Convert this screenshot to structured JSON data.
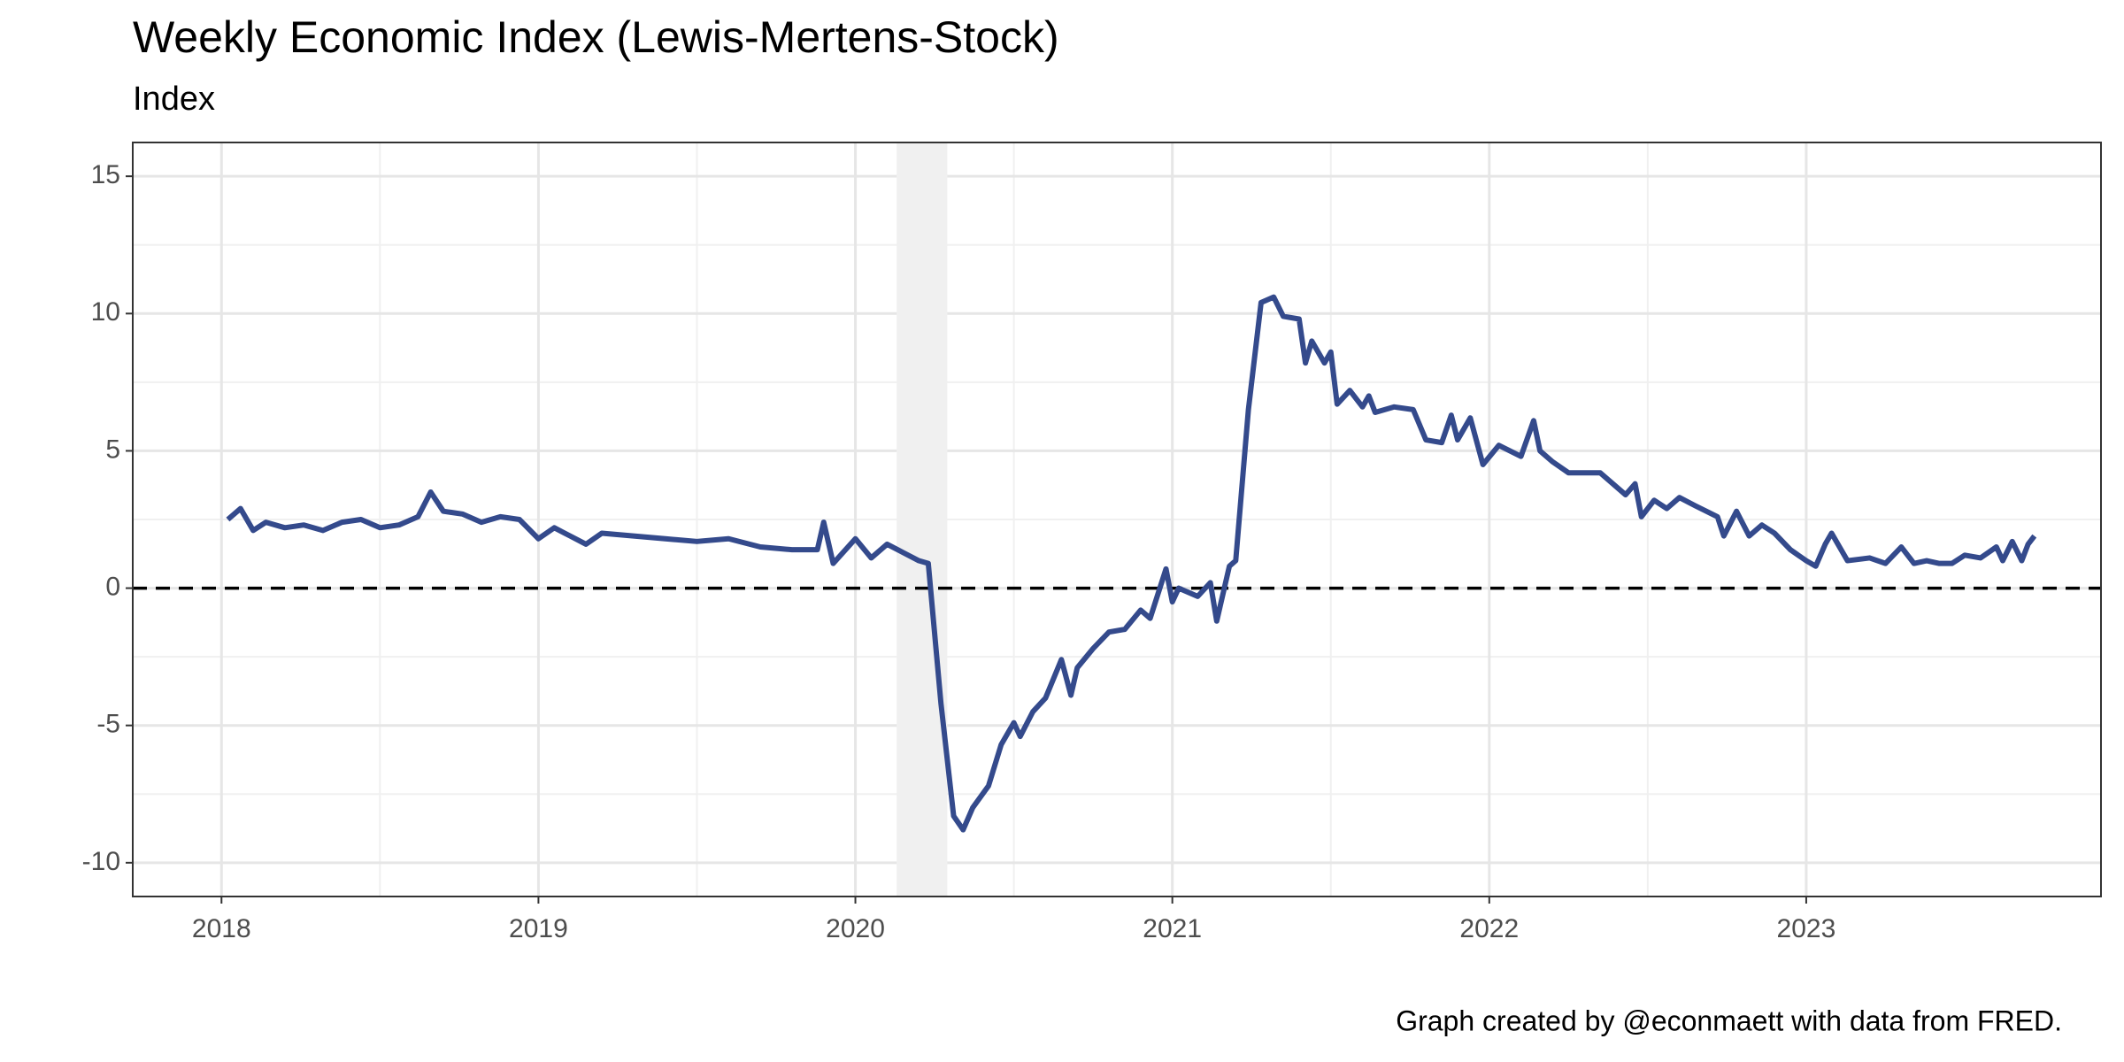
{
  "chart_data": {
    "type": "line",
    "title": "Weekly Economic Index (Lewis-Mertens-Stock)",
    "subtitle": "Index",
    "caption": "Graph created by @econmaett with data from FRED.",
    "x": [
      2018.02,
      2018.06,
      2018.1,
      2018.14,
      2018.2,
      2018.26,
      2018.32,
      2018.38,
      2018.44,
      2018.5,
      2018.56,
      2018.62,
      2018.66,
      2018.7,
      2018.76,
      2018.82,
      2018.88,
      2018.94,
      2019.0,
      2019.05,
      2019.1,
      2019.15,
      2019.2,
      2019.3,
      2019.4,
      2019.5,
      2019.6,
      2019.7,
      2019.8,
      2019.88,
      2019.9,
      2019.93,
      2020.0,
      2020.05,
      2020.1,
      2020.15,
      2020.2,
      2020.23,
      2020.27,
      2020.31,
      2020.34,
      2020.37,
      2020.42,
      2020.46,
      2020.5,
      2020.52,
      2020.56,
      2020.6,
      2020.65,
      2020.68,
      2020.7,
      2020.75,
      2020.8,
      2020.85,
      2020.9,
      2020.93,
      2020.98,
      2021.0,
      2021.02,
      2021.08,
      2021.12,
      2021.14,
      2021.18,
      2021.2,
      2021.24,
      2021.28,
      2021.32,
      2021.35,
      2021.4,
      2021.42,
      2021.44,
      2021.48,
      2021.5,
      2021.52,
      2021.56,
      2021.6,
      2021.62,
      2021.64,
      2021.7,
      2021.76,
      2021.8,
      2021.85,
      2021.88,
      2021.9,
      2021.94,
      2021.98,
      2022.03,
      2022.1,
      2022.14,
      2022.16,
      2022.2,
      2022.25,
      2022.3,
      2022.35,
      2022.43,
      2022.46,
      2022.48,
      2022.52,
      2022.56,
      2022.6,
      2022.65,
      2022.72,
      2022.74,
      2022.78,
      2022.82,
      2022.86,
      2022.9,
      2022.95,
      2023.0,
      2023.03,
      2023.06,
      2023.08,
      2023.13,
      2023.2,
      2023.25,
      2023.3,
      2023.34,
      2023.38,
      2023.42,
      2023.46,
      2023.5,
      2023.55,
      2023.6,
      2023.62,
      2023.65,
      2023.68,
      2023.7,
      2023.72
    ],
    "series": [
      {
        "name": "Weekly Economic Index",
        "color": "#344a8c",
        "values": [
          2.5,
          2.9,
          2.1,
          2.4,
          2.2,
          2.3,
          2.1,
          2.4,
          2.5,
          2.2,
          2.3,
          2.6,
          3.5,
          2.8,
          2.7,
          2.4,
          2.6,
          2.5,
          1.8,
          2.2,
          1.9,
          1.6,
          2.0,
          1.9,
          1.8,
          1.7,
          1.8,
          1.5,
          1.4,
          1.4,
          2.4,
          0.9,
          1.8,
          1.1,
          1.6,
          1.3,
          1.0,
          0.9,
          -4.2,
          -8.3,
          -8.8,
          -8.0,
          -7.2,
          -5.7,
          -4.9,
          -5.4,
          -4.5,
          -4.0,
          -2.6,
          -3.9,
          -2.9,
          -2.2,
          -1.6,
          -1.5,
          -0.8,
          -1.1,
          0.7,
          -0.5,
          0.0,
          -0.3,
          0.2,
          -1.2,
          0.8,
          1.0,
          6.5,
          10.4,
          10.6,
          9.9,
          9.8,
          8.2,
          9.0,
          8.2,
          8.6,
          6.7,
          7.2,
          6.6,
          7.0,
          6.4,
          6.6,
          6.5,
          5.4,
          5.3,
          6.3,
          5.4,
          6.2,
          4.5,
          5.2,
          4.8,
          6.1,
          5.0,
          4.6,
          4.2,
          4.2,
          4.2,
          3.4,
          3.8,
          2.6,
          3.2,
          2.9,
          3.3,
          3.0,
          2.6,
          1.9,
          2.8,
          1.9,
          2.3,
          2.0,
          1.4,
          1.0,
          0.8,
          1.6,
          2.0,
          1.0,
          1.1,
          0.9,
          1.5,
          0.9,
          1.0,
          0.9,
          0.9,
          1.2,
          1.1,
          1.5,
          1.0,
          1.7,
          1.0,
          1.6,
          1.9
        ]
      }
    ],
    "xlim": [
      2017.72,
      2023.93
    ],
    "xticks": [
      2018,
      2019,
      2020,
      2021,
      2022,
      2023
    ],
    "ylim": [
      -11.23,
      16.23
    ],
    "yticks": [
      -10,
      -5,
      0,
      5,
      10,
      15
    ],
    "grid": true,
    "shaded_regions": [
      [
        2020.13,
        2020.29
      ]
    ],
    "hline": 0
  }
}
